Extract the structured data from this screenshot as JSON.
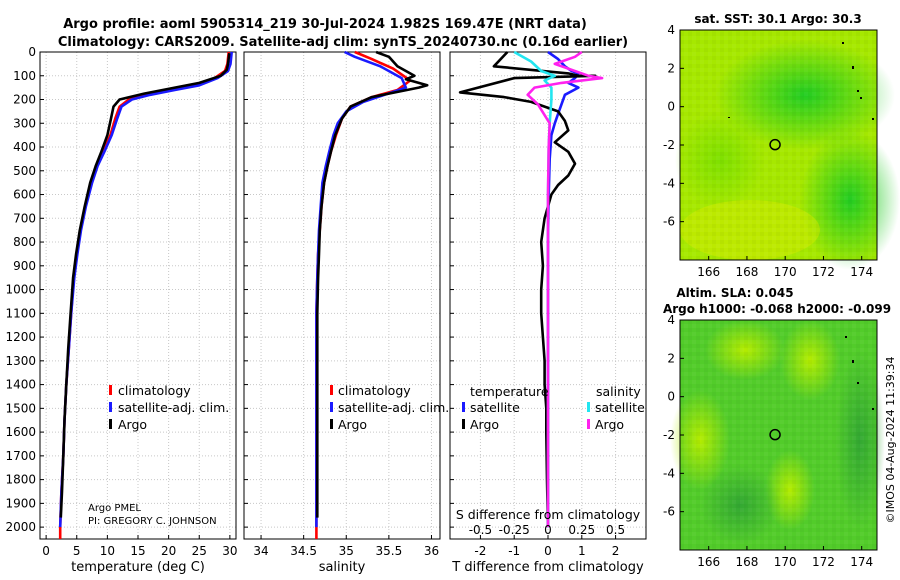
{
  "title": {
    "line1": "Argo profile: aoml 5905314_219 30-Jul-2024 1.982S 169.47E (NRT data)",
    "line2": "Climatology: CARS2009. Satellite-adj clim: synTS_20240730.nc (0.16d earlier)"
  },
  "credit": {
    "institution": "Argo PMEL",
    "pi": "PI: GREGORY C. JOHNSON"
  },
  "timestamp": "©IMOS 04-Aug-2024 11:39:34",
  "colors": {
    "red": "#ff0000",
    "blue": "#1a1aff",
    "black": "#000000",
    "cyan": "#22e5f0",
    "magenta": "#ff22ee",
    "grid": "#c8c8c8"
  },
  "chart_data": [
    {
      "id": "temperature",
      "type": "line",
      "xlabel": "temperature (deg C)",
      "xlim": [
        -1,
        31
      ],
      "ylim": [
        2050,
        0
      ],
      "xticks": [
        0,
        5,
        10,
        15,
        20,
        25,
        30
      ],
      "yticks": [
        0,
        100,
        200,
        300,
        400,
        500,
        600,
        700,
        800,
        900,
        1000,
        1100,
        1200,
        1300,
        1400,
        1500,
        1600,
        1700,
        1800,
        1900,
        2000
      ],
      "legend": [
        "climatology",
        "satellite-adj. clim.",
        "Argo"
      ],
      "series": [
        {
          "name": "climatology",
          "color": "red",
          "points": [
            [
              29.8,
              0
            ],
            [
              29.6,
              50
            ],
            [
              29.2,
              80
            ],
            [
              27.5,
              110
            ],
            [
              24,
              140
            ],
            [
              20,
              160
            ],
            [
              16,
              180
            ],
            [
              13.5,
              200
            ],
            [
              12,
              230
            ],
            [
              11.3,
              280
            ],
            [
              10.5,
              350
            ],
            [
              9.3,
              420
            ],
            [
              8.3,
              480
            ],
            [
              7.4,
              550
            ],
            [
              6.4,
              650
            ],
            [
              5.6,
              750
            ],
            [
              5,
              850
            ],
            [
              4.5,
              950
            ],
            [
              4.1,
              1100
            ],
            [
              3.7,
              1250
            ],
            [
              3.3,
              1400
            ],
            [
              3,
              1550
            ],
            [
              2.8,
              1700
            ],
            [
              2.5,
              1850
            ],
            [
              2.3,
              2000
            ],
            [
              2.3,
              2050
            ]
          ]
        },
        {
          "name": "satellite-adj. clim.",
          "color": "blue",
          "points": [
            [
              30.3,
              0
            ],
            [
              30.1,
              50
            ],
            [
              29.7,
              80
            ],
            [
              28,
              110
            ],
            [
              25,
              140
            ],
            [
              21,
              160
            ],
            [
              17,
              180
            ],
            [
              14,
              200
            ],
            [
              12.3,
              230
            ],
            [
              11.6,
              280
            ],
            [
              10.7,
              350
            ],
            [
              9.5,
              420
            ],
            [
              8.4,
              480
            ],
            [
              7.5,
              550
            ],
            [
              6.5,
              650
            ],
            [
              5.7,
              750
            ],
            [
              5.1,
              850
            ],
            [
              4.6,
              950
            ],
            [
              4.1,
              1100
            ],
            [
              3.7,
              1250
            ],
            [
              3.3,
              1400
            ],
            [
              3,
              1550
            ],
            [
              2.8,
              1700
            ],
            [
              2.5,
              1850
            ],
            [
              2.3,
              2000
            ]
          ]
        },
        {
          "name": "Argo",
          "color": "black",
          "points": [
            [
              29.9,
              5
            ],
            [
              29.7,
              50
            ],
            [
              29.5,
              75
            ],
            [
              28.5,
              100
            ],
            [
              25,
              130
            ],
            [
              21,
              150
            ],
            [
              16,
              175
            ],
            [
              12,
              200
            ],
            [
              11,
              230
            ],
            [
              10.6,
              280
            ],
            [
              10,
              350
            ],
            [
              9,
              420
            ],
            [
              8.1,
              480
            ],
            [
              7.2,
              550
            ],
            [
              6.3,
              650
            ],
            [
              5.5,
              750
            ],
            [
              4.9,
              850
            ],
            [
              4.4,
              950
            ],
            [
              4,
              1100
            ],
            [
              3.6,
              1250
            ],
            [
              3.3,
              1400
            ],
            [
              3,
              1550
            ],
            [
              2.8,
              1700
            ],
            [
              2.6,
              1850
            ],
            [
              2.4,
              1960
            ]
          ]
        }
      ],
      "credit_inside": true
    },
    {
      "id": "salinity",
      "type": "line",
      "xlabel": "salinity",
      "xlim": [
        33.8,
        36.1
      ],
      "ylim": [
        2050,
        0
      ],
      "xticks": [
        34,
        34.5,
        35,
        35.5,
        36
      ],
      "tick_labels": [
        "34",
        "34.5",
        "35",
        "35.5",
        "36"
      ],
      "legend": [
        "climatology",
        "satellite-adj. clim.",
        "Argo"
      ],
      "series": [
        {
          "name": "climatology",
          "color": "red",
          "points": [
            [
              35.1,
              0
            ],
            [
              35.3,
              30
            ],
            [
              35.55,
              70
            ],
            [
              35.75,
              120
            ],
            [
              35.6,
              160
            ],
            [
              35.3,
              190
            ],
            [
              35.05,
              230
            ],
            [
              34.95,
              280
            ],
            [
              34.88,
              350
            ],
            [
              34.82,
              420
            ],
            [
              34.78,
              480
            ],
            [
              34.74,
              550
            ],
            [
              34.71,
              650
            ],
            [
              34.69,
              750
            ],
            [
              34.67,
              850
            ],
            [
              34.66,
              950
            ],
            [
              34.65,
              1100
            ],
            [
              34.65,
              1300
            ],
            [
              34.65,
              1500
            ],
            [
              34.65,
              1700
            ],
            [
              34.65,
              1900
            ],
            [
              34.65,
              2050
            ]
          ]
        },
        {
          "name": "satellite-adj. clim.",
          "color": "blue",
          "points": [
            [
              34.98,
              0
            ],
            [
              35.1,
              20
            ],
            [
              35.4,
              60
            ],
            [
              35.65,
              110
            ],
            [
              35.7,
              150
            ],
            [
              35.45,
              180
            ],
            [
              35.2,
              210
            ],
            [
              35.0,
              250
            ],
            [
              34.9,
              300
            ],
            [
              34.85,
              350
            ],
            [
              34.8,
              420
            ],
            [
              34.76,
              480
            ],
            [
              34.72,
              550
            ],
            [
              34.7,
              650
            ],
            [
              34.68,
              750
            ],
            [
              34.67,
              850
            ],
            [
              34.66,
              950
            ],
            [
              34.65,
              1100
            ],
            [
              34.65,
              1300
            ],
            [
              34.65,
              1500
            ],
            [
              34.65,
              1700
            ],
            [
              34.65,
              1900
            ],
            [
              34.65,
              2000
            ]
          ]
        },
        {
          "name": "Argo",
          "color": "black",
          "points": [
            [
              35.35,
              0
            ],
            [
              35.5,
              20
            ],
            [
              35.6,
              60
            ],
            [
              35.8,
              100
            ],
            [
              35.7,
              115
            ],
            [
              35.95,
              140
            ],
            [
              35.85,
              150
            ],
            [
              35.5,
              175
            ],
            [
              35.3,
              190
            ],
            [
              35.05,
              230
            ],
            [
              34.95,
              280
            ],
            [
              34.87,
              350
            ],
            [
              34.82,
              420
            ],
            [
              34.78,
              480
            ],
            [
              34.74,
              550
            ],
            [
              34.71,
              650
            ],
            [
              34.69,
              750
            ],
            [
              34.68,
              850
            ],
            [
              34.67,
              950
            ],
            [
              34.66,
              1100
            ],
            [
              34.66,
              1300
            ],
            [
              34.66,
              1500
            ],
            [
              34.66,
              1700
            ],
            [
              34.66,
              1900
            ],
            [
              34.66,
              1960
            ]
          ]
        }
      ]
    },
    {
      "id": "difference",
      "type": "line",
      "xlabel": "T difference from climatology",
      "xlabel_top": "S difference from climatology",
      "xlim": [
        -2.9,
        2.9
      ],
      "ylim": [
        2050,
        0
      ],
      "xticks": [
        -2,
        -1,
        0,
        1,
        2
      ],
      "s_ticks": [
        "-0.5",
        "-0.25",
        "0",
        "0.25",
        "0.5"
      ],
      "legend_temperature_title": "temperature",
      "legend_salinity_title": "salinity",
      "legend_temperature": [
        "satellite",
        "Argo"
      ],
      "legend_salinity": [
        "satellite",
        "Argo"
      ],
      "series": [
        {
          "name": "temperature satellite",
          "color": "blue",
          "points": [
            [
              0,
              0
            ],
            [
              0.3,
              30
            ],
            [
              0.5,
              60
            ],
            [
              0.7,
              80
            ],
            [
              0.9,
              90
            ],
            [
              0.8,
              110
            ],
            [
              0.6,
              130
            ],
            [
              0.9,
              150
            ],
            [
              0.5,
              180
            ],
            [
              0.4,
              220
            ],
            [
              0.3,
              260
            ],
            [
              0.2,
              300
            ],
            [
              0.1,
              350
            ],
            [
              0.05,
              450
            ],
            [
              0.02,
              600
            ],
            [
              0,
              800
            ],
            [
              0,
              1200
            ],
            [
              0,
              1600
            ],
            [
              0,
              2000
            ]
          ]
        },
        {
          "name": "temperature Argo",
          "color": "black",
          "points": [
            [
              -1.2,
              0
            ],
            [
              -1.6,
              60
            ],
            [
              0.6,
              90
            ],
            [
              0.9,
              100
            ],
            [
              1.4,
              100
            ],
            [
              -1,
              110
            ],
            [
              -2.6,
              170
            ],
            [
              -1.3,
              190
            ],
            [
              -0.5,
              210
            ],
            [
              0.3,
              250
            ],
            [
              0.5,
              290
            ],
            [
              0.6,
              330
            ],
            [
              0.2,
              380
            ],
            [
              0.6,
              420
            ],
            [
              0.8,
              470
            ],
            [
              0.6,
              520
            ],
            [
              0.3,
              560
            ],
            [
              0.1,
              600
            ],
            [
              -0.1,
              700
            ],
            [
              -0.2,
              800
            ],
            [
              -0.15,
              900
            ],
            [
              -0.2,
              1000
            ],
            [
              -0.2,
              1100
            ],
            [
              -0.15,
              1200
            ],
            [
              -0.1,
              1300
            ],
            [
              -0.1,
              1400
            ],
            [
              -0.05,
              1500
            ],
            [
              -0.05,
              1600
            ],
            [
              -0.03,
              1800
            ],
            [
              0,
              2000
            ]
          ]
        },
        {
          "name": "salinity satellite",
          "color": "cyan",
          "points": [
            [
              -1.0,
              0
            ],
            [
              -0.5,
              40
            ],
            [
              -0.2,
              80
            ],
            [
              0.2,
              100
            ],
            [
              -0.1,
              120
            ],
            [
              0.1,
              150
            ],
            [
              0.1,
              200
            ],
            [
              0.05,
              300
            ],
            [
              0.02,
              400
            ],
            [
              0,
              600
            ],
            [
              0,
              1000
            ],
            [
              0,
              1400
            ],
            [
              0,
              1800
            ],
            [
              0,
              2000
            ]
          ]
        },
        {
          "name": "salinity Argo",
          "color": "magenta",
          "points": [
            [
              1.0,
              0
            ],
            [
              0.8,
              20
            ],
            [
              0.2,
              50
            ],
            [
              1.2,
              100
            ],
            [
              1.6,
              110
            ],
            [
              0.4,
              130
            ],
            [
              -0.4,
              150
            ],
            [
              -0.6,
              180
            ],
            [
              -0.3,
              220
            ],
            [
              0.05,
              300
            ],
            [
              0.02,
              400
            ],
            [
              0,
              600
            ],
            [
              0,
              1000
            ],
            [
              0,
              1400
            ],
            [
              0,
              1800
            ],
            [
              0,
              2000
            ]
          ]
        }
      ]
    },
    {
      "id": "sst_map",
      "type": "heatmap",
      "title": "sat. SST: 30.1 Argo: 30.3",
      "xticks": [
        166,
        168,
        170,
        172,
        174
      ],
      "yticks": [
        4,
        2,
        0,
        -2,
        -4,
        -6
      ],
      "xlim": [
        164.5,
        174.8
      ],
      "ylim": [
        -8.0,
        4.0
      ],
      "marker": [
        169.47,
        -1.982
      ]
    },
    {
      "id": "sla_map",
      "type": "heatmap",
      "title": "Altim. SLA: 0.045",
      "subtitle": "Argo h1000: -0.068 h2000: -0.099",
      "xticks": [
        166,
        168,
        170,
        172,
        174
      ],
      "yticks": [
        4,
        2,
        0,
        -2,
        -4,
        -6
      ],
      "xlim": [
        164.5,
        174.8
      ],
      "ylim": [
        -8.0,
        4.0
      ],
      "marker": [
        169.47,
        -1.982
      ]
    }
  ]
}
